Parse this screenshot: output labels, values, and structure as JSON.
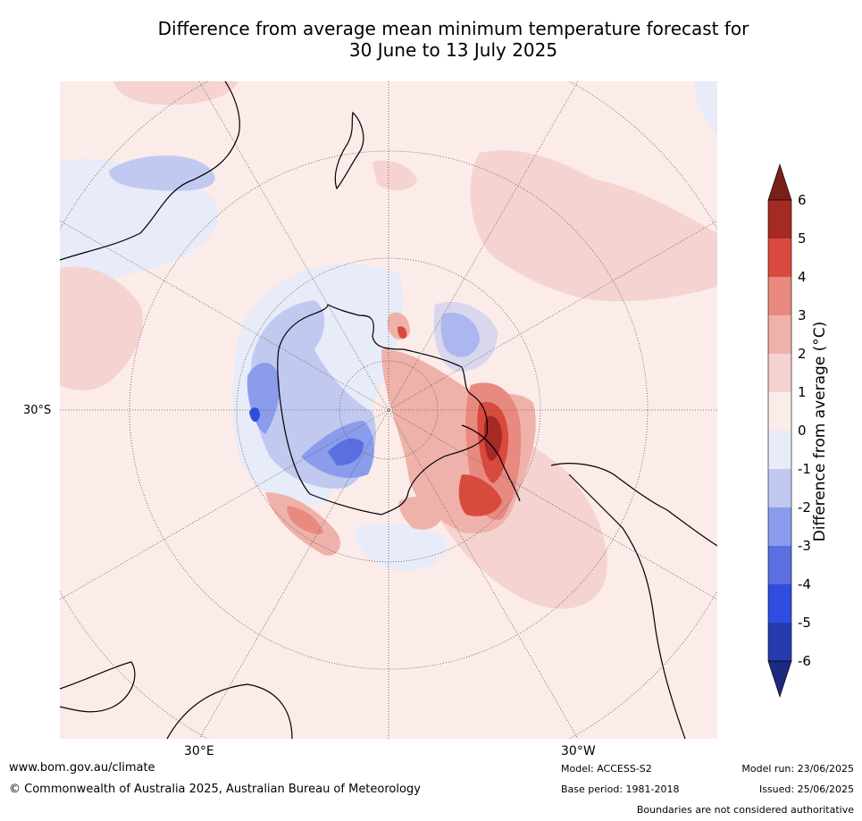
{
  "title": {
    "line1": "Difference from average mean minimum temperature forecast for",
    "line2": "30 June to 13 July 2025"
  },
  "map": {
    "projection": "south-polar stereographic",
    "lat_label": "30°S",
    "lon_labels": [
      "30°E",
      "30°W"
    ]
  },
  "colorbar": {
    "label": "Difference from average (°C)",
    "ticks": [
      "6",
      "5",
      "4",
      "3",
      "2",
      "1",
      "0",
      "-1",
      "-2",
      "-3",
      "-4",
      "-5",
      "-6"
    ],
    "colors": {
      "gt6": "#7a1f1a",
      "5_6": "#a52a23",
      "4_5": "#d94a3e",
      "3_4": "#e88a80",
      "2_3": "#efb2aa",
      "1_2": "#f5d3d0",
      "0_1": "#fbebe9",
      "m1_0": "#e8ebf8",
      "m2_m1": "#c2c9f0",
      "m3_m2": "#8b9cec",
      "m4_m3": "#5b6fe0",
      "m5_m4": "#2f4de0",
      "m6_m5": "#263bb0",
      "lt_m6": "#1c2a80"
    }
  },
  "footer": {
    "website": "www.bom.gov.au/climate",
    "copyright": "© Commonwealth of Australia 2025, Australian Bureau of Meteorology",
    "model": "Model: ACCESS-S2",
    "base_period": "Base period: 1981-2018",
    "model_run": "Model run: 23/06/2025",
    "issued": "Issued: 25/06/2025",
    "disclaimer": "Boundaries are not considered authoritative"
  }
}
